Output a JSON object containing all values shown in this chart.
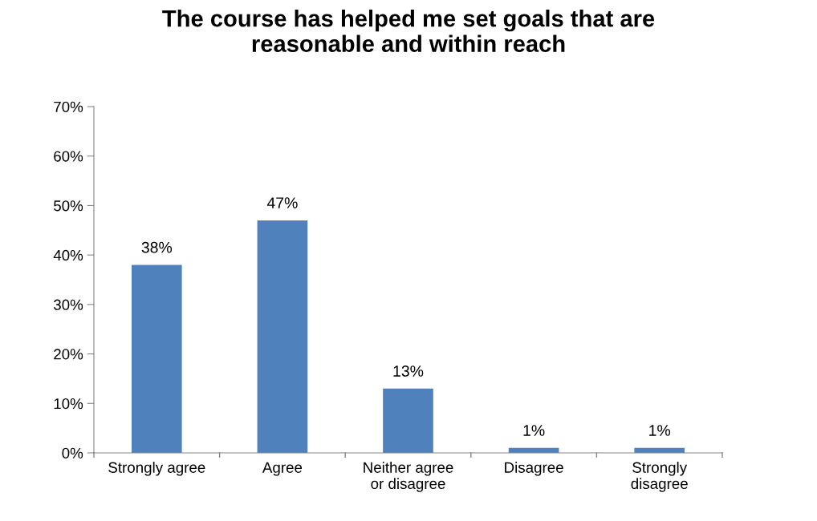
{
  "chart_data": {
    "type": "bar",
    "title": "The course has helped me set goals that are\nreasonable and within reach",
    "categories": [
      "Strongly agree",
      "Agree",
      "Neither agree\nor disagree",
      "Disagree",
      "Strongly\ndisagree"
    ],
    "values": [
      38,
      47,
      13,
      1,
      1
    ],
    "color": "#4f81bd",
    "value_labels": [
      "38%",
      "47%",
      "13%",
      "1%",
      "1%"
    ],
    "ylim": [
      0,
      70
    ],
    "yticks": [
      {
        "value": 0,
        "label": "0%"
      },
      {
        "value": 10,
        "label": "10%"
      },
      {
        "value": 20,
        "label": "20%"
      },
      {
        "value": 30,
        "label": "30%"
      },
      {
        "value": 40,
        "label": "40%"
      },
      {
        "value": 50,
        "label": "50%"
      },
      {
        "value": 60,
        "label": "60%"
      },
      {
        "value": 70,
        "label": "70%"
      }
    ],
    "grid": false,
    "legend": false
  }
}
